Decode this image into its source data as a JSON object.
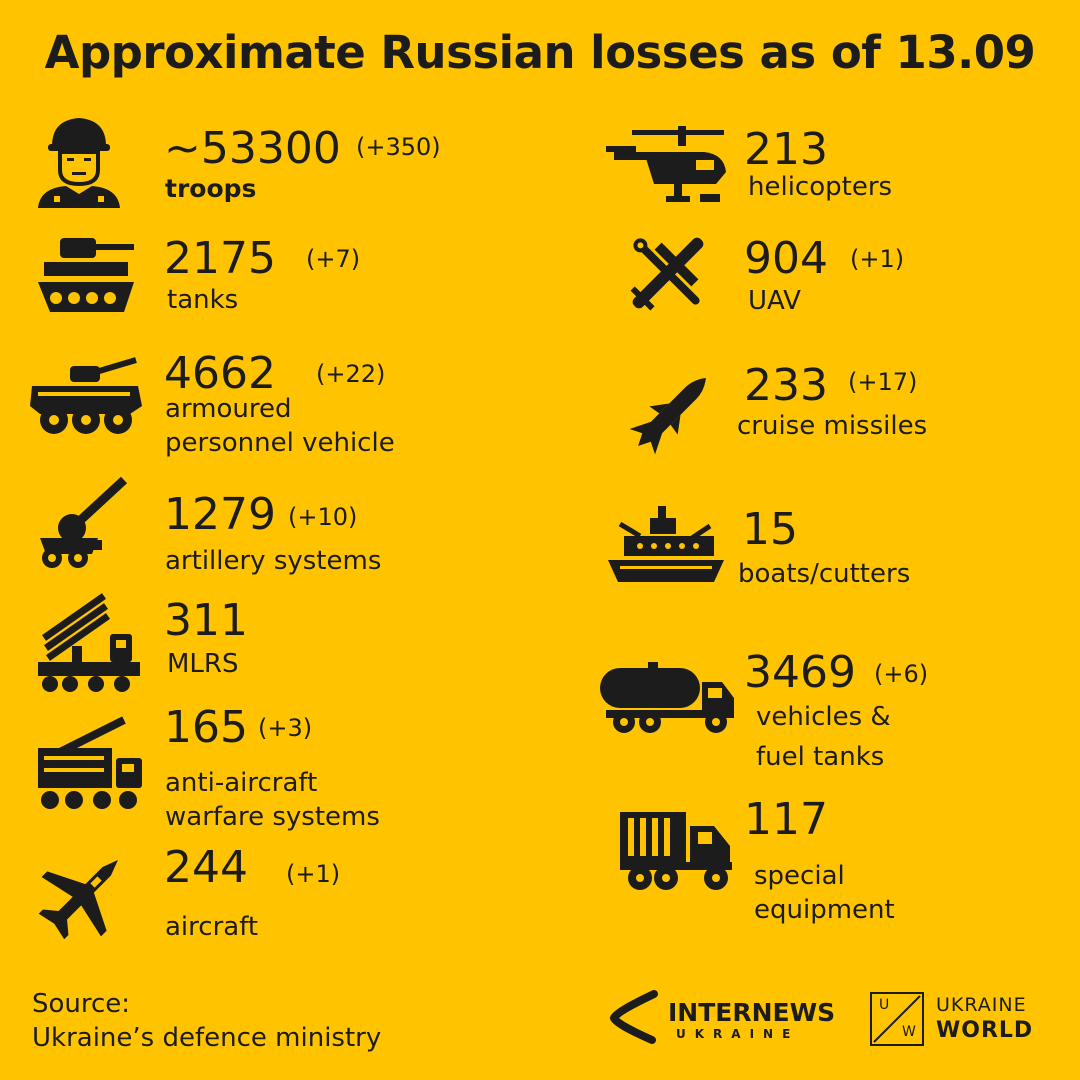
{
  "title": "Approximate Russian losses as of 13.09",
  "stats": {
    "troops": {
      "number": "~53300",
      "delta": "(+350)",
      "label": "troops",
      "icon": "soldier-icon"
    },
    "tanks": {
      "number": "2175",
      "delta": "(+7)",
      "label": "tanks",
      "icon": "tank-icon"
    },
    "apv": {
      "number": "4662",
      "delta": "(+22)",
      "label_line1": "armoured",
      "label_line2": "personnel vehicle",
      "icon": "armoured-vehicle-icon"
    },
    "artillery": {
      "number": "1279",
      "delta": "(+10)",
      "label": "artillery systems",
      "icon": "artillery-icon"
    },
    "mlrs": {
      "number": "311",
      "label": "MLRS",
      "icon": "mlrs-icon"
    },
    "antiair": {
      "number": "165",
      "delta": "(+3)",
      "label_line1": "anti-aircraft",
      "label_line2": "warfare systems",
      "icon": "anti-aircraft-icon"
    },
    "aircraft": {
      "number": "244",
      "delta": "(+1)",
      "label": "aircraft",
      "icon": "fighter-jet-icon"
    },
    "helicopters": {
      "number": "213",
      "label": "helicopters",
      "icon": "helicopter-icon"
    },
    "uav": {
      "number": "904",
      "delta": "(+1)",
      "label": "UAV",
      "icon": "crossed-drone-icon"
    },
    "missiles": {
      "number": "233",
      "delta": "(+17)",
      "label": "cruise missiles",
      "icon": "missile-icon"
    },
    "boats": {
      "number": "15",
      "label": "boats/cutters",
      "icon": "ship-icon"
    },
    "vehicles": {
      "number": "3469",
      "delta": "(+6)",
      "label_line1": "vehicles &",
      "label_line2": "fuel tanks",
      "icon": "fuel-truck-icon"
    },
    "special": {
      "number": "117",
      "label_line1": "special",
      "label_line2": "equipment",
      "icon": "special-truck-icon"
    }
  },
  "source": {
    "line1": "Source:",
    "line2": "Ukraine’s defence ministry"
  },
  "logos": {
    "internews_big": "INTERNEWS",
    "internews_small": "UKRAINE",
    "uw_top": "UKRAINE",
    "uw_bottom": "WORLD",
    "uw_u": "U",
    "uw_w": "W"
  },
  "colors": {
    "background": "#FFC300",
    "ink": "#1c1c1c"
  }
}
